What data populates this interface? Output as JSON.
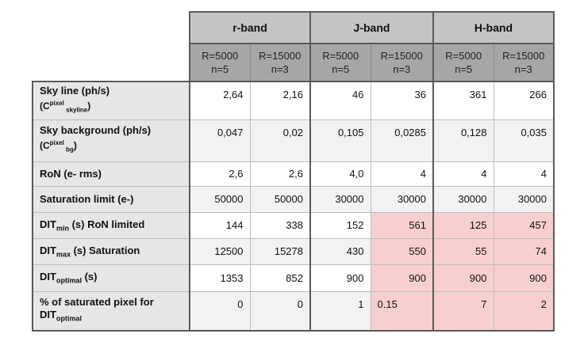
{
  "bands": [
    "r-band",
    "J-band",
    "H-band"
  ],
  "subheaders": [
    {
      "r": "R=5000",
      "n": "n=5"
    },
    {
      "r": "R=15000",
      "n": "n=3"
    },
    {
      "r": "R=5000",
      "n": "n=5"
    },
    {
      "r": "R=15000",
      "n": "n=3"
    },
    {
      "r": "R=5000",
      "n": "n=5"
    },
    {
      "r": "R=15000",
      "n": "n=3"
    }
  ],
  "labels": {
    "sky_line": {
      "main": "Sky line (ph/s)",
      "c": "(C",
      "sup": "pixel",
      "sub": " skyline",
      "close": ")"
    },
    "sky_bg": {
      "main": "Sky background (ph/s)",
      "c": "(C",
      "sup": "pixel",
      "sub": " bg",
      "close": ")"
    },
    "ron": "RoN (e- rms)",
    "sat_limit": "Saturation limit (e-)",
    "dit_min": {
      "a": "DIT",
      "sub": "min",
      "b": " (s) RoN limited"
    },
    "dit_max": {
      "a": "DIT",
      "sub": "max",
      "b": " (s) Saturation"
    },
    "dit_opt": {
      "a": "DIT",
      "sub": "optimal",
      "b": " (s)"
    },
    "pct_sat": {
      "main": "% of saturated pixel for",
      "a": "DIT",
      "sub": "optimal"
    }
  },
  "rows": {
    "sky_line": [
      "2,64",
      "2,16",
      "46",
      "36",
      "361",
      "266"
    ],
    "sky_bg": [
      "0,047",
      "0,02",
      "0,105",
      "0,0285",
      "0,128",
      "0,035"
    ],
    "ron": [
      "2,6",
      "2,6",
      "4,0",
      "4",
      "4",
      "4"
    ],
    "sat_limit": [
      "50000",
      "50000",
      "30000",
      "30000",
      "30000",
      "30000"
    ],
    "dit_min": [
      "144",
      "338",
      "152",
      "561",
      "125",
      "457"
    ],
    "dit_max": [
      "12500",
      "15278",
      "430",
      "550",
      "55",
      "74"
    ],
    "dit_opt": [
      "1353",
      "852",
      "900",
      "900",
      "900",
      "900"
    ],
    "pct_sat": [
      "0",
      "0",
      "1",
      "0.15",
      "7",
      "2"
    ]
  },
  "highlight_color": "#f8cfcf"
}
